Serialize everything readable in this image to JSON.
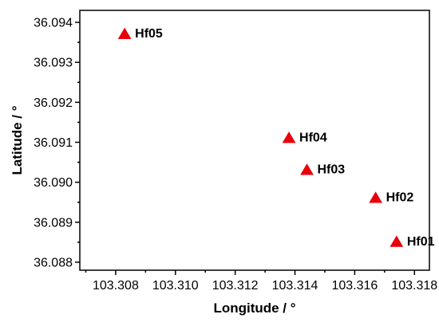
{
  "chart_data": {
    "type": "scatter",
    "title": "",
    "xlabel": "Longitude / °",
    "ylabel": "Latitude / °",
    "xlim": [
      103.3068,
      103.3185
    ],
    "ylim": [
      36.0878,
      36.0943
    ],
    "x_ticks": [
      103.308,
      103.31,
      103.312,
      103.314,
      103.316,
      103.318
    ],
    "y_ticks": [
      36.088,
      36.089,
      36.09,
      36.091,
      36.092,
      36.093,
      36.094
    ],
    "x_tick_labels": [
      "103.308",
      "103.310",
      "103.312",
      "103.314",
      "103.316",
      "103.318"
    ],
    "y_tick_labels": [
      "36.088",
      "36.089",
      "36.090",
      "36.091",
      "36.092",
      "36.093",
      "36.094"
    ],
    "grid": false,
    "marker": "triangle",
    "marker_color": "#e8000b",
    "points": [
      {
        "label": "Hf05",
        "x": 103.3083,
        "y": 36.0937
      },
      {
        "label": "Hf04",
        "x": 103.3138,
        "y": 36.0911
      },
      {
        "label": "Hf03",
        "x": 103.3144,
        "y": 36.0903
      },
      {
        "label": "Hf02",
        "x": 103.3167,
        "y": 36.0896
      },
      {
        "label": "Hf01",
        "x": 103.3174,
        "y": 36.0885
      }
    ]
  }
}
